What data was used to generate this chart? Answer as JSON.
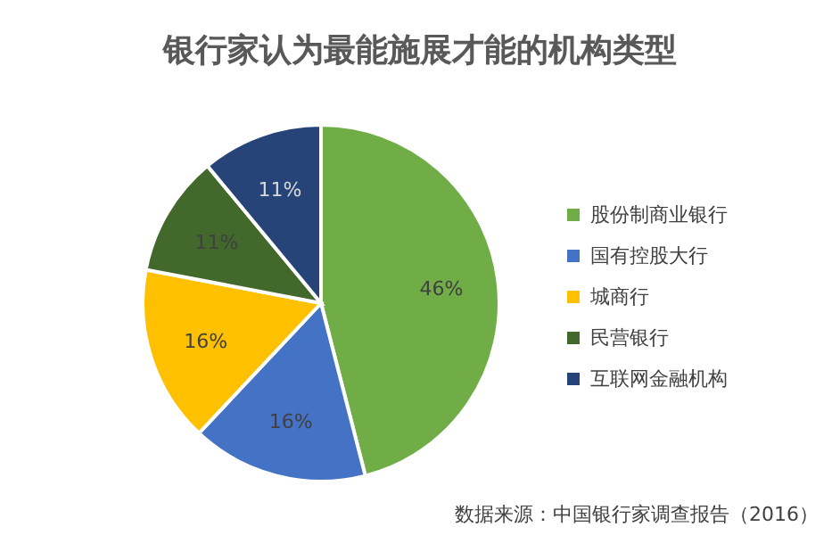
{
  "chart_data": {
    "type": "pie",
    "title": "银行家认为最能施展才能的机构类型",
    "categories": [
      "股份制商业银行",
      "国有控股大行",
      "城商行",
      "民营银行",
      "互联网金融机构"
    ],
    "values": [
      46,
      16,
      16,
      11,
      11
    ],
    "colors": [
      "#70ad47",
      "#4472c4",
      "#ffc000",
      "#43682b",
      "#264478"
    ],
    "value_labels": [
      "46%",
      "16%",
      "16%",
      "11%",
      "11%"
    ],
    "legend": "right",
    "annotations": [
      "数据来源：中国银行家调查报告（2016）"
    ]
  }
}
